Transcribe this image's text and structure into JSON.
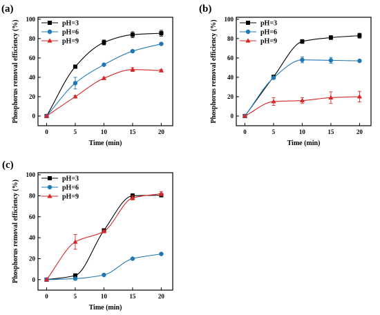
{
  "chart_data": [
    {
      "type": "line",
      "panel_label": "(a)",
      "xlabel": "Time (min)",
      "ylabel": "Phosphorus removal efficiency (%)",
      "x": [
        0,
        5,
        10,
        15,
        20
      ],
      "xlim": [
        -1.5,
        22
      ],
      "ylim": [
        -10,
        102
      ],
      "xticks": [
        "0",
        "5",
        "10",
        "15",
        "20"
      ],
      "yticks": [
        "0",
        "20",
        "40",
        "60",
        "80",
        "100"
      ],
      "legend_position": "top-left",
      "series": [
        {
          "name": "pH=3",
          "color": "#000000",
          "marker": "square",
          "values": [
            0,
            51,
            76,
            84,
            85.5
          ],
          "errors": [
            0,
            1.5,
            2.5,
            3,
            3
          ]
        },
        {
          "name": "pH=6",
          "color": "#1f77b4",
          "marker": "circle",
          "values": [
            0,
            34,
            53,
            67,
            74.5
          ],
          "errors": [
            0,
            6,
            1,
            1,
            1
          ]
        },
        {
          "name": "pH=9",
          "color": "#d62728",
          "marker": "triangle",
          "values": [
            0,
            20,
            39,
            48,
            47
          ],
          "errors": [
            0,
            1,
            1,
            2,
            1
          ]
        }
      ]
    },
    {
      "type": "line",
      "panel_label": "(b)",
      "xlabel": "Time (min)",
      "ylabel": "Phosphorus removal efficiency (%)",
      "x": [
        0,
        5,
        10,
        15,
        20
      ],
      "xlim": [
        -1.5,
        22
      ],
      "ylim": [
        -10,
        102
      ],
      "xticks": [
        "0",
        "5",
        "10",
        "15",
        "20"
      ],
      "yticks": [
        "0",
        "20",
        "40",
        "60",
        "80",
        "100"
      ],
      "legend_position": "top-left",
      "series": [
        {
          "name": "pH=3",
          "color": "#000000",
          "marker": "square",
          "values": [
            0,
            40.5,
            77,
            81,
            83
          ],
          "errors": [
            0,
            1.5,
            2,
            2,
            2.5
          ]
        },
        {
          "name": "pH=6",
          "color": "#1f77b4",
          "marker": "circle",
          "values": [
            0,
            39.5,
            58,
            57.5,
            57
          ],
          "errors": [
            0,
            1,
            3,
            3,
            1
          ]
        },
        {
          "name": "pH=9",
          "color": "#d62728",
          "marker": "triangle",
          "values": [
            0,
            15,
            16,
            19,
            20
          ],
          "errors": [
            0,
            4,
            3,
            6,
            5.5
          ]
        }
      ]
    },
    {
      "type": "line",
      "panel_label": "(c)",
      "xlabel": "Time (min)",
      "ylabel": "Phosphorus removal efficiency (%)",
      "x": [
        0,
        5,
        10,
        15,
        20
      ],
      "xlim": [
        -1.5,
        22
      ],
      "ylim": [
        -10,
        102
      ],
      "xticks": [
        "0",
        "5",
        "10",
        "15",
        "20"
      ],
      "yticks": [
        "0",
        "20",
        "40",
        "60",
        "80",
        "100"
      ],
      "legend_position": "top-left",
      "series": [
        {
          "name": "pH=3",
          "color": "#000000",
          "marker": "square",
          "values": [
            0,
            4,
            47,
            80,
            80.5
          ],
          "errors": [
            0,
            1,
            1.5,
            2,
            1.5
          ]
        },
        {
          "name": "pH=6",
          "color": "#1f77b4",
          "marker": "circle",
          "values": [
            0,
            1,
            4.5,
            20,
            24.5
          ],
          "errors": [
            0,
            0.5,
            0.5,
            0.5,
            1
          ]
        },
        {
          "name": "pH=9",
          "color": "#d62728",
          "marker": "triangle",
          "values": [
            0,
            36,
            46,
            78,
            82
          ],
          "errors": [
            0,
            7,
            1,
            2,
            2
          ]
        }
      ]
    }
  ]
}
